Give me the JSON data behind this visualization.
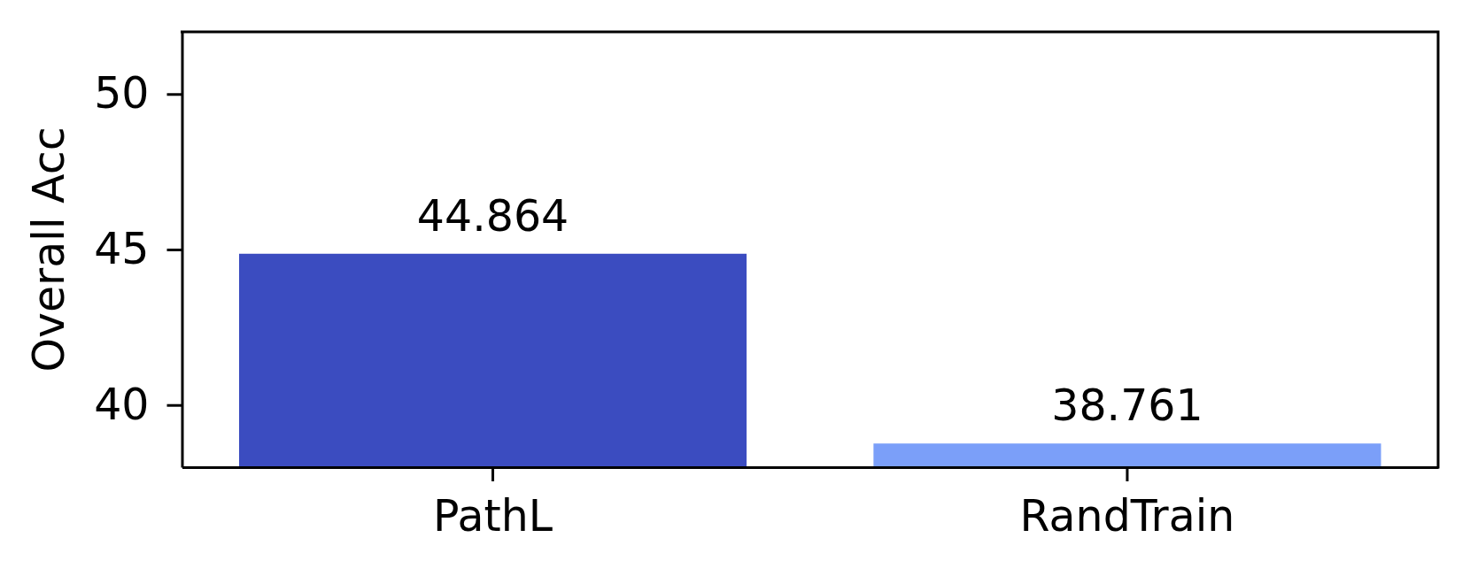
{
  "chart_data": {
    "type": "bar",
    "ylabel": "Overall Acc",
    "categories": [
      "PathL",
      "RandTrain"
    ],
    "values": [
      44.864,
      38.761
    ],
    "colors": [
      "#3b4cc0",
      "#7b9ff9"
    ],
    "ylim": [
      38,
      52
    ],
    "yticks": [
      40,
      45,
      50
    ],
    "data_labels": true
  }
}
